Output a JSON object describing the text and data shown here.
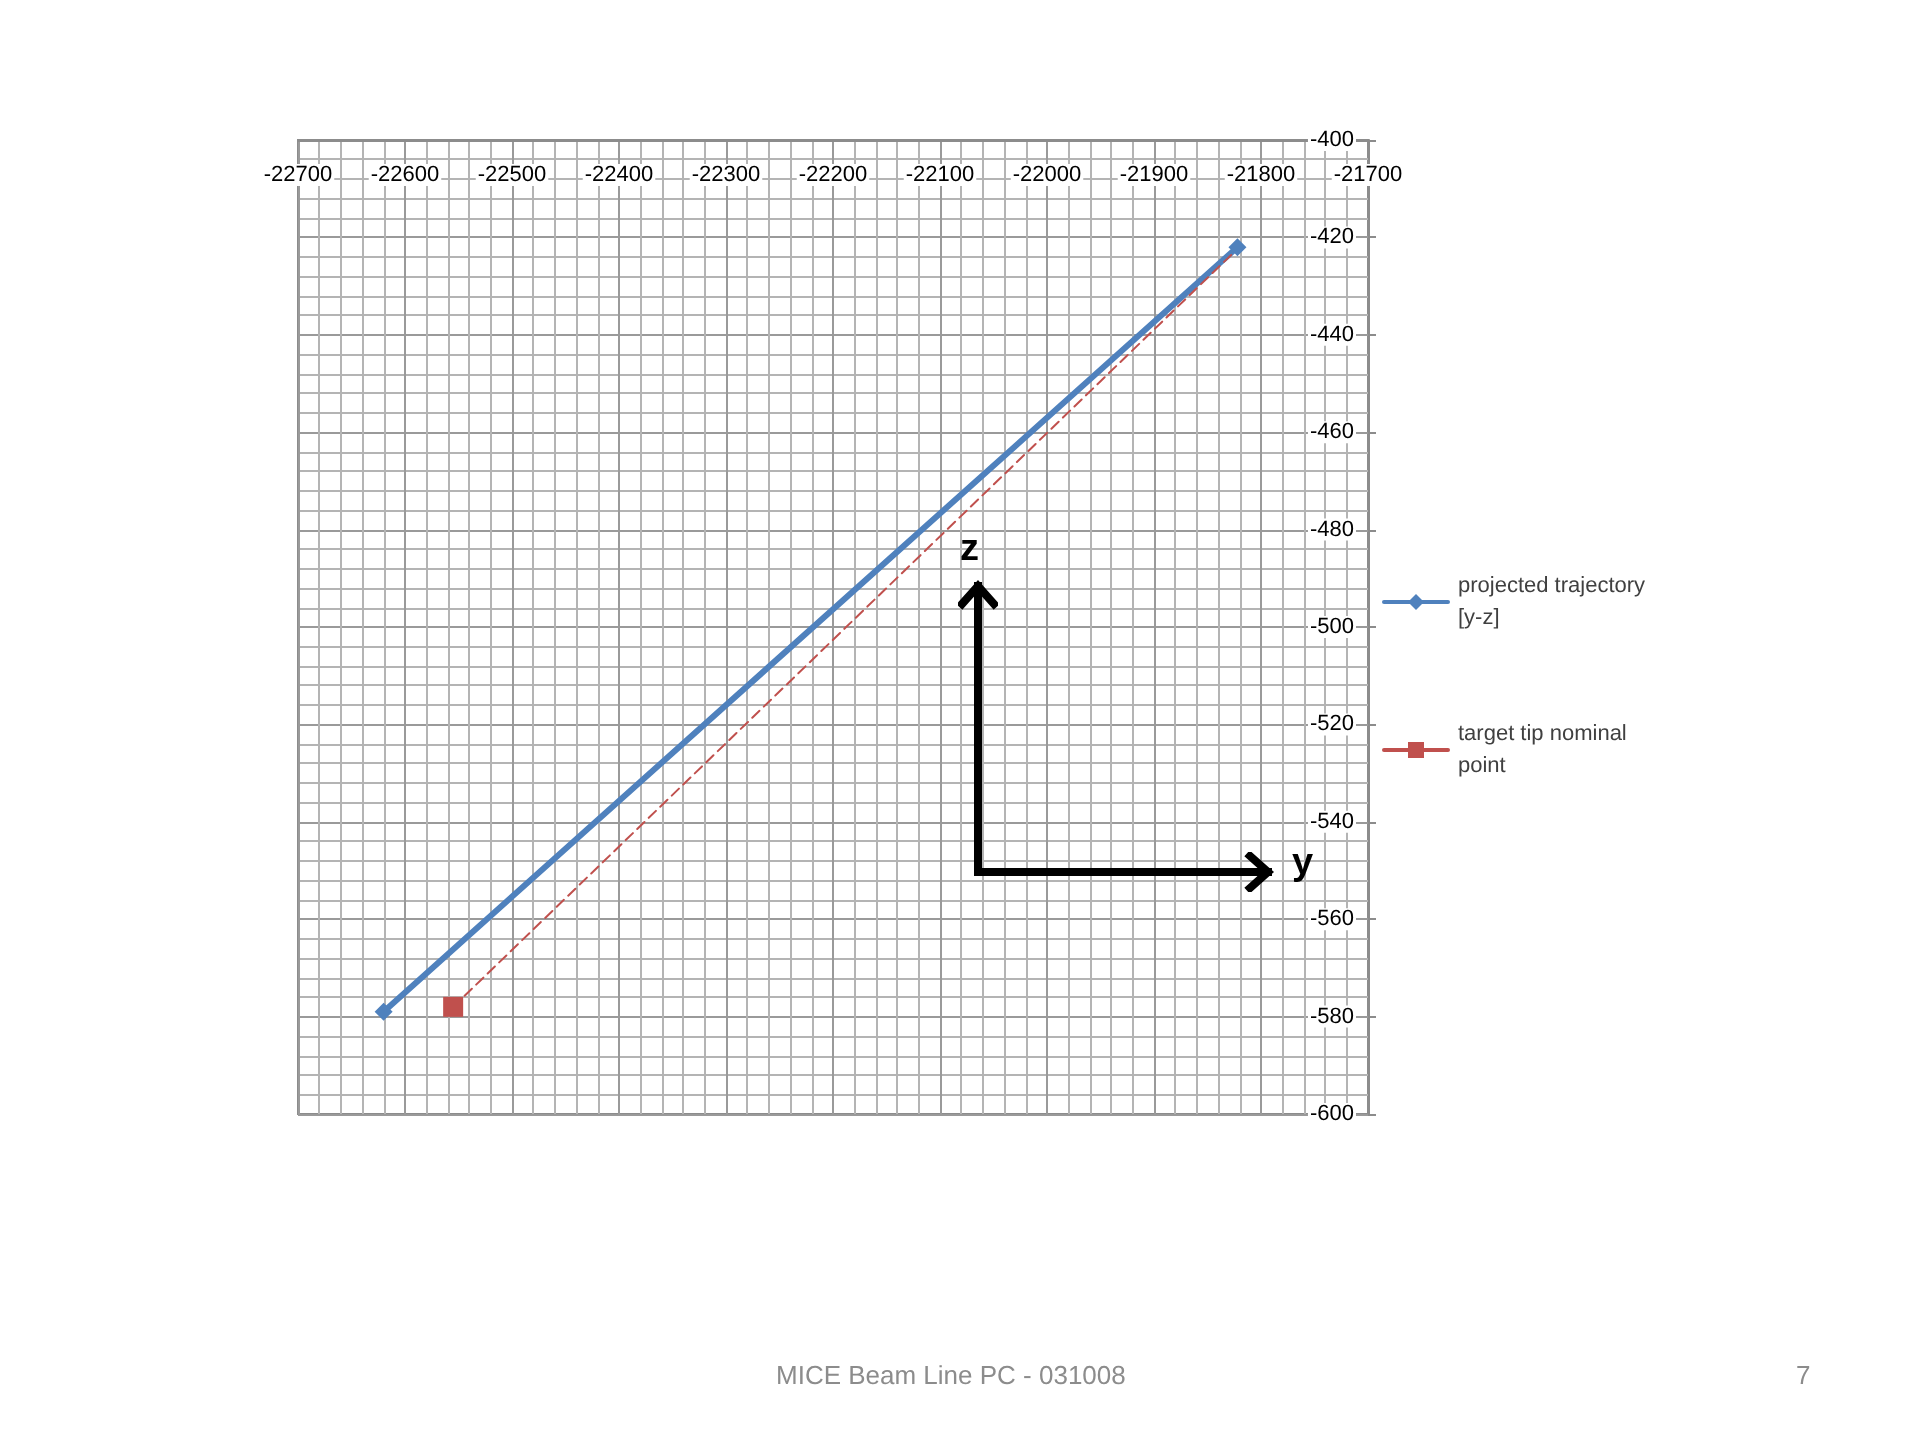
{
  "chart_data": {
    "type": "line",
    "xlim": [
      -22700,
      -21700
    ],
    "xticks": [
      -22700,
      -22600,
      -22500,
      -22400,
      -22300,
      -22200,
      -22100,
      -22000,
      -21900,
      -21800,
      -21700
    ],
    "ylim": [
      -600,
      -400
    ],
    "yticks": [
      -600,
      -580,
      -560,
      -540,
      -520,
      -500,
      -480,
      -460,
      -440,
      -420,
      -400
    ],
    "grid": true,
    "legend": "right",
    "series": [
      {
        "name": "projected trajectory [y-z]",
        "color": "#4f81bd",
        "x": [
          -22620,
          -21822
        ],
        "values": [
          -579,
          -422
        ],
        "marker": "diamond",
        "line_style": "solid"
      },
      {
        "color": "#c0504d",
        "x": [
          -22555,
          -21825
        ],
        "values": [
          -578,
          -423
        ],
        "marker": "none",
        "line_style": "dashed"
      },
      {
        "name": "target tip nominal point",
        "color": "#c0504d",
        "x": [
          -22555
        ],
        "values": [
          -578
        ],
        "marker": "square",
        "line_style": "solid"
      }
    ],
    "annotations": [
      "z",
      "y",
      "MICE Beam Line PC - 031008",
      "7"
    ]
  }
}
